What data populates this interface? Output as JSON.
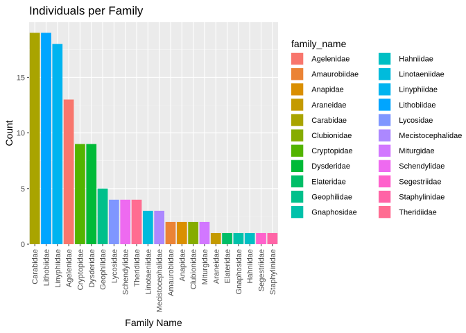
{
  "chart_data": {
    "type": "bar",
    "title": "Individuals per Family",
    "xlabel": "Family Name",
    "ylabel": "Count",
    "ylim": [
      0,
      19.95
    ],
    "yticks": [
      0,
      5,
      10,
      15
    ],
    "grid": true,
    "legend_title": "family_name",
    "legend_position": "right",
    "categories": [
      "Carabidae",
      "Lithobiidae",
      "Linyphiidae",
      "Agelenidae",
      "Cryptopidae",
      "Dysderidae",
      "Geophilidae",
      "Lycosidae",
      "Schendylidae",
      "Theridiidae",
      "Linotaeniidae",
      "Mecistocephalidae",
      "Amaurobiidae",
      "Anapidae",
      "Clubionidae",
      "Miturgidae",
      "Araneidae",
      "Elateridae",
      "Gnaphosidae",
      "Hahniidae",
      "Segestriidae",
      "Staphylinidae"
    ],
    "values": [
      19,
      19,
      18,
      13,
      9,
      9,
      5,
      4,
      4,
      4,
      3,
      3,
      2,
      2,
      2,
      2,
      1,
      1,
      1,
      1,
      1,
      1
    ],
    "legend": [
      {
        "label": "Agelenidae",
        "color": "#F8766D"
      },
      {
        "label": "Amaurobiidae",
        "color": "#EB8335"
      },
      {
        "label": "Anapidae",
        "color": "#DA8F00"
      },
      {
        "label": "Araneidae",
        "color": "#C49A00"
      },
      {
        "label": "Carabidae",
        "color": "#A9A400"
      },
      {
        "label": "Clubionidae",
        "color": "#86AC00"
      },
      {
        "label": "Cryptopidae",
        "color": "#53B400"
      },
      {
        "label": "Dysderidae",
        "color": "#00BA38"
      },
      {
        "label": "Elateridae",
        "color": "#00BE67"
      },
      {
        "label": "Geophilidae",
        "color": "#00C08B"
      },
      {
        "label": "Gnaphosidae",
        "color": "#00C1AA"
      },
      {
        "label": "Hahniidae",
        "color": "#00BFC4"
      },
      {
        "label": "Linotaeniidae",
        "color": "#00BBDC"
      },
      {
        "label": "Linyphiidae",
        "color": "#00B4F0"
      },
      {
        "label": "Lithobiidae",
        "color": "#00A5FF"
      },
      {
        "label": "Lycosidae",
        "color": "#7F96FF"
      },
      {
        "label": "Mecistocephalidae",
        "color": "#AC88FF"
      },
      {
        "label": "Miturgidae",
        "color": "#D277FF"
      },
      {
        "label": "Schendylidae",
        "color": "#EE6AF0"
      },
      {
        "label": "Segestriidae",
        "color": "#FF61CC"
      },
      {
        "label": "Staphylinidae",
        "color": "#FF64A6"
      },
      {
        "label": "Theridiidae",
        "color": "#FF6C91"
      }
    ],
    "colors": {
      "panel_background": "#EBEBEB",
      "grid_major": "#FFFFFF",
      "grid_minor": "#F5F5F5",
      "tick_text": "#4D4D4D"
    }
  }
}
